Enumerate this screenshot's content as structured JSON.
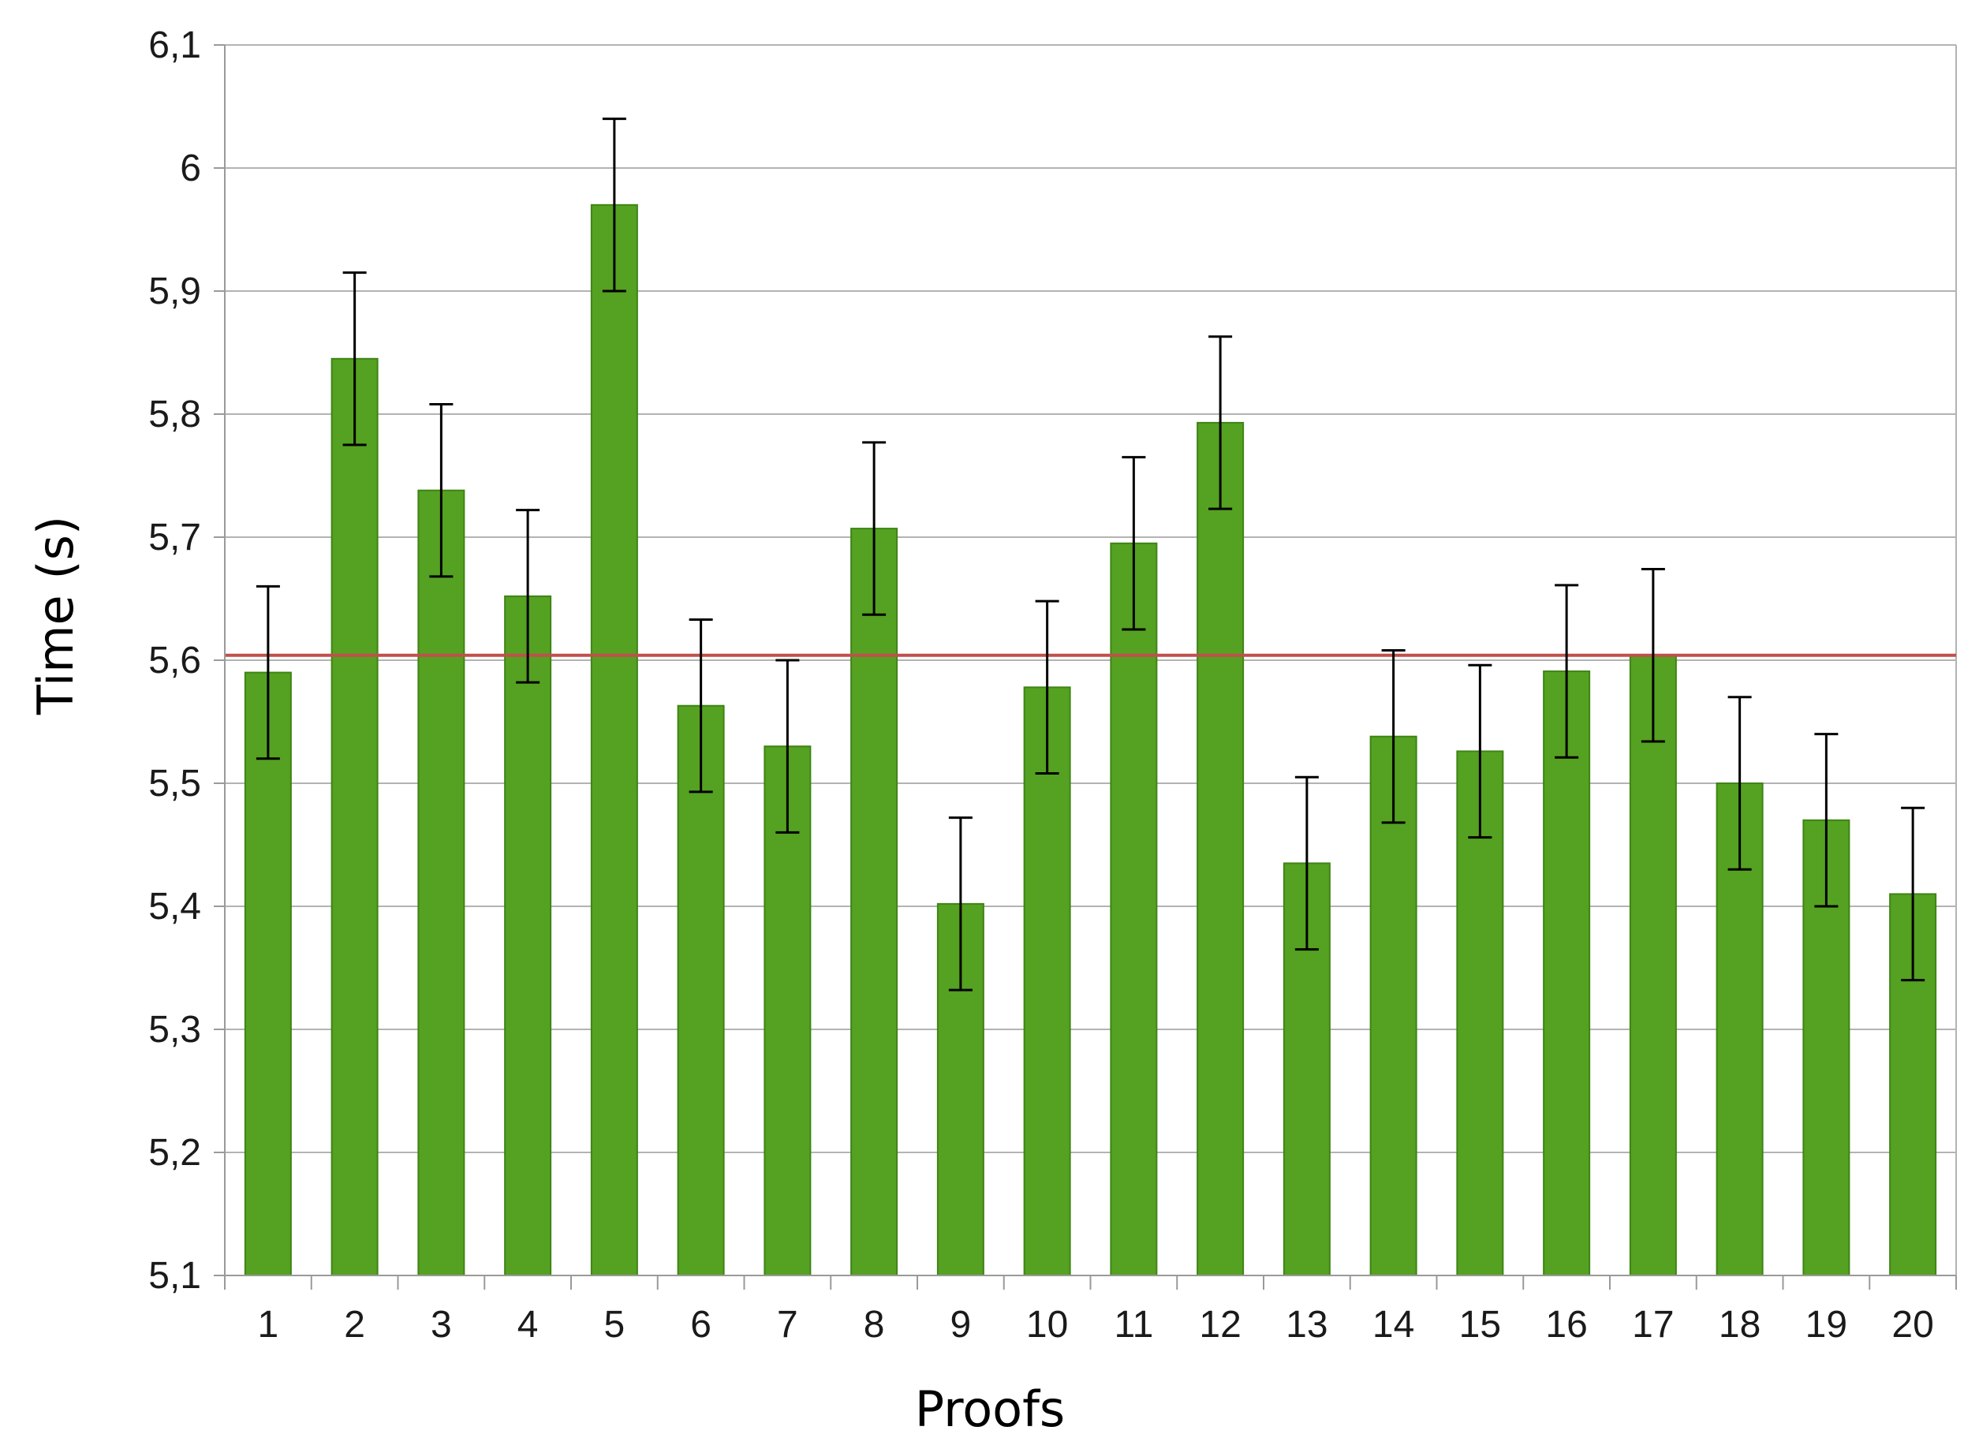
{
  "chart_data": {
    "type": "bar",
    "title": "",
    "xlabel": "Proofs",
    "ylabel": "Time (s)",
    "ylim": [
      5.1,
      6.1
    ],
    "yticks": [
      5.1,
      5.2,
      5.3,
      5.4,
      5.5,
      5.6,
      5.7,
      5.8,
      5.9,
      6,
      6.1
    ],
    "ytick_labels": [
      "5,1",
      "5,2",
      "5,3",
      "5,4",
      "5,5",
      "5,6",
      "5,7",
      "5,8",
      "5,9",
      "6",
      "6,1"
    ],
    "categories": [
      "1",
      "2",
      "3",
      "4",
      "5",
      "6",
      "7",
      "8",
      "9",
      "10",
      "11",
      "12",
      "13",
      "14",
      "15",
      "16",
      "17",
      "18",
      "19",
      "20"
    ],
    "values": [
      5.59,
      5.845,
      5.738,
      5.652,
      5.97,
      5.563,
      5.53,
      5.707,
      5.402,
      5.578,
      5.695,
      5.793,
      5.435,
      5.538,
      5.526,
      5.591,
      5.604,
      5.5,
      5.47,
      5.41
    ],
    "error": [
      0.07,
      0.07,
      0.07,
      0.07,
      0.07,
      0.07,
      0.07,
      0.07,
      0.07,
      0.07,
      0.07,
      0.07,
      0.07,
      0.07,
      0.07,
      0.07,
      0.07,
      0.07,
      0.07,
      0.07
    ],
    "reference_line": 5.604,
    "grid": true,
    "colors": {
      "bar": "#55a121",
      "bar_edge": "#3f8416",
      "reference_line": "#c0504d",
      "grid": "#b3b3b3",
      "error_bar": "#000000"
    }
  }
}
